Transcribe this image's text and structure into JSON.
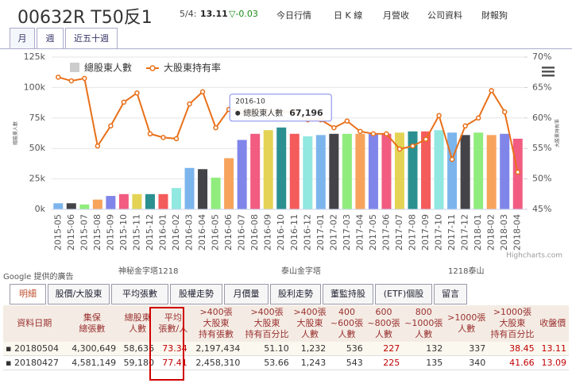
{
  "header": {
    "stock": "00632R T50反1",
    "date": "5/4:",
    "price": "13.11",
    "change": "▽-0.03",
    "nav": [
      "今日行情",
      "日 K 線",
      "月營收",
      "公司資料",
      "財報狗"
    ]
  },
  "period_tabs": [
    "月",
    "週",
    "近五十週"
  ],
  "chart_data": {
    "type": "bar",
    "categories": [
      "2015-05",
      "2015-06",
      "2015-07",
      "2015-08",
      "2015-09",
      "2015-10",
      "2015-11",
      "2015-12",
      "2016-01",
      "2016-02",
      "2016-03",
      "2016-04",
      "2016-05",
      "2016-06",
      "2016-07",
      "2016-08",
      "2016-09",
      "2016-10",
      "2016-11",
      "2016-12",
      "2017-01",
      "2017-02",
      "2017-03",
      "2017-04",
      "2017-05",
      "2017-06",
      "2017-07",
      "2017-08",
      "2017-09",
      "2017-10",
      "2017-11",
      "2017-12",
      "2018-01",
      "2018-02",
      "2018-03",
      "2018-04"
    ],
    "colors": [
      "#7cb5ec",
      "#434348",
      "#90ed7d",
      "#f7a35c",
      "#8085e9",
      "#f15c80",
      "#e4d354",
      "#2b908f",
      "#f45b5b",
      "#91e8e1"
    ],
    "series": [
      {
        "name": "總股東人數",
        "type": "bar",
        "color": "#cccccc",
        "values": [
          5000,
          5000,
          4000,
          8000,
          11000,
          12500,
          12500,
          12500,
          12500,
          17500,
          34000,
          33000,
          26000,
          42000,
          57000,
          62000,
          65000,
          67196,
          62000,
          60000,
          61000,
          62000,
          62000,
          62000,
          62000,
          62000,
          63000,
          64000,
          64000,
          65000,
          63000,
          61000,
          63000,
          61000,
          62000,
          58000
        ]
      },
      {
        "name": "大股東持有率",
        "type": "line",
        "axis": "y2",
        "color": "#e8701a",
        "values": [
          66.7,
          66.1,
          66.5,
          55.4,
          58.7,
          62.6,
          64.1,
          57.4,
          56.8,
          56.6,
          62.3,
          64.3,
          58.4,
          61.4,
          61,
          61,
          61,
          61,
          61,
          59.7,
          59.7,
          58.4,
          59.5,
          57.8,
          57.4,
          57.4,
          54.9,
          55.4,
          56.5,
          60.4,
          53.2,
          58.7,
          60,
          64.5,
          61,
          51.1
        ]
      }
    ],
    "y_label": "總股東人數",
    "y2_label": "大股東持有率",
    "ylim": [
      0,
      125000
    ],
    "yticks": [
      {
        "value": 0,
        "label": "0k"
      },
      {
        "value": 25000,
        "label": "25k"
      },
      {
        "value": 50000,
        "label": "50k"
      },
      {
        "value": 75000,
        "label": "75k"
      },
      {
        "value": 100000,
        "label": "100k"
      },
      {
        "value": 125000,
        "label": "125k"
      }
    ],
    "y2lim": [
      45,
      70
    ],
    "y2ticks": [
      {
        "value": 45,
        "label": "45%"
      },
      {
        "value": 50,
        "label": "50%"
      },
      {
        "value": 55,
        "label": "55%"
      },
      {
        "value": 60,
        "label": "60%"
      },
      {
        "value": 65,
        "label": "65%"
      },
      {
        "value": 70,
        "label": "70%"
      }
    ],
    "grid": true,
    "legend": "top-left",
    "tooltip_value": "67,196",
    "credits": "Highcharts.com"
  },
  "ads": {
    "label": "Google 提供的廣告",
    "links": [
      "神秘金字塔1218",
      "泰山金字塔",
      "1218泰山"
    ]
  },
  "tabs": [
    "明細",
    "股價/大股東",
    "平均張數",
    "股權走勢",
    "月價量",
    "股利走勢",
    "董監持股",
    "(ETF)個股",
    "留言"
  ],
  "table": {
    "header": [
      "資料日期",
      "集保\n總張數",
      "總股東\n人數",
      "平均\n張數/人",
      ">400張\n大股東\n持有張數",
      ">400張\n大股東\n持有百分比",
      ">400張\n大股東\n人數",
      "400\n~600張\n人數",
      "600\n~800張\n人數",
      "800\n~1000張\n人數",
      ">1000張\n人數",
      ">1000張\n大股東\n持有百分比",
      "收盤價"
    ],
    "rows": [
      [
        "20180504",
        "4,300,649",
        "58,636",
        "73.34",
        "2,197,434",
        "51.10",
        "1,232",
        "536",
        "227",
        "132",
        "337",
        "38.45",
        "13.11"
      ],
      [
        "20180427",
        "4,581,149",
        "59,180",
        "77.41",
        "2,458,310",
        "53.66",
        "1,243",
        "543",
        "225",
        "135",
        "340",
        "41.66",
        "13.09"
      ]
    ]
  }
}
